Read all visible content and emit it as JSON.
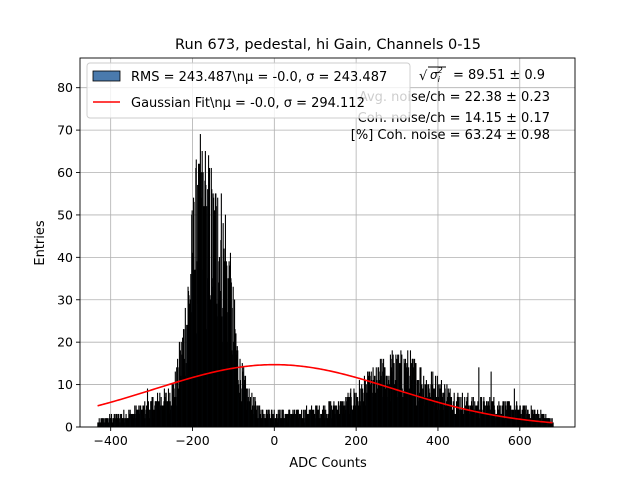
{
  "chart_data": {
    "type": "bar",
    "title": "Run 673, pedestal, hi Gain, Channels 0-15",
    "xlabel": "ADC Counts",
    "ylabel": "Entries",
    "xlim": [
      -475,
      735
    ],
    "ylim": [
      0,
      87
    ],
    "xticks": [
      -400,
      -200,
      0,
      200,
      400,
      600
    ],
    "yticks": [
      0,
      10,
      20,
      30,
      40,
      50,
      60,
      70,
      80
    ],
    "xtick_labels": [
      "−400",
      "−200",
      "0",
      "200",
      "400",
      "600"
    ],
    "ytick_labels": [
      "0",
      "10",
      "20",
      "30",
      "40",
      "50",
      "60",
      "70",
      "80"
    ],
    "grid": true,
    "legend_position": "top-left",
    "histogram": {
      "name": "RMS = 243.487\\nμ = -0.0, σ = 243.487",
      "color": "#4a7aad",
      "bin_range": [
        -432,
        682
      ],
      "envelope": [
        {
          "x": -432,
          "y": 1
        },
        {
          "x": -400,
          "y": 2
        },
        {
          "x": -350,
          "y": 3
        },
        {
          "x": -300,
          "y": 5
        },
        {
          "x": -260,
          "y": 7
        },
        {
          "x": -240,
          "y": 10
        },
        {
          "x": -225,
          "y": 18
        },
        {
          "x": -210,
          "y": 30
        },
        {
          "x": -195,
          "y": 44
        },
        {
          "x": -180,
          "y": 50
        },
        {
          "x": -170,
          "y": 50
        },
        {
          "x": -160,
          "y": 47
        },
        {
          "x": -150,
          "y": 46
        },
        {
          "x": -140,
          "y": 44
        },
        {
          "x": -128,
          "y": 42
        },
        {
          "x": -115,
          "y": 36
        },
        {
          "x": -100,
          "y": 24
        },
        {
          "x": -85,
          "y": 13
        },
        {
          "x": -65,
          "y": 7
        },
        {
          "x": -40,
          "y": 4
        },
        {
          "x": 0,
          "y": 3
        },
        {
          "x": 60,
          "y": 3
        },
        {
          "x": 120,
          "y": 4
        },
        {
          "x": 170,
          "y": 5
        },
        {
          "x": 210,
          "y": 8
        },
        {
          "x": 240,
          "y": 10
        },
        {
          "x": 270,
          "y": 12
        },
        {
          "x": 300,
          "y": 13
        },
        {
          "x": 330,
          "y": 13
        },
        {
          "x": 360,
          "y": 11
        },
        {
          "x": 400,
          "y": 9
        },
        {
          "x": 450,
          "y": 6
        },
        {
          "x": 500,
          "y": 5
        },
        {
          "x": 550,
          "y": 5
        },
        {
          "x": 600,
          "y": 4
        },
        {
          "x": 650,
          "y": 3
        },
        {
          "x": 682,
          "y": 1
        }
      ],
      "peaks": [
        {
          "x": -183,
          "y": 62
        },
        {
          "x": -179,
          "y": 60
        },
        {
          "x": -170,
          "y": 58
        },
        {
          "x": -163,
          "y": 56
        },
        {
          "x": -150,
          "y": 55
        },
        {
          "x": -138,
          "y": 54
        },
        {
          "x": -196,
          "y": 53
        },
        {
          "x": -187,
          "y": 57
        },
        {
          "x": -120,
          "y": 50
        },
        {
          "x": -110,
          "y": 38
        },
        {
          "x": 288,
          "y": 18
        },
        {
          "x": 297,
          "y": 17
        },
        {
          "x": 320,
          "y": 16
        },
        {
          "x": 312,
          "y": 17
        },
        {
          "x": 345,
          "y": 15
        },
        {
          "x": 263,
          "y": 16
        },
        {
          "x": 500,
          "y": 14
        },
        {
          "x": 530,
          "y": 13
        },
        {
          "x": 587,
          "y": 9
        },
        {
          "x": -310,
          "y": 9
        },
        {
          "x": -280,
          "y": 8
        },
        {
          "x": -250,
          "y": 10
        }
      ]
    },
    "fit": {
      "name": "Gaussian Fit\\nμ = -0.0, σ = 294.112",
      "color": "#ff0000",
      "mu": 0,
      "sigma": 294.112,
      "amplitude": 14.7,
      "x_range": [
        -432,
        682
      ]
    },
    "annotations": [
      {
        "id": "rms",
        "text": "= 89.51 ± 0.9"
      },
      {
        "id": "avg",
        "text": "Avg. noise/ch = 22.38 ± 0.23"
      },
      {
        "id": "coh",
        "text": "Coh. noise/ch = 14.15 ± 0.17"
      },
      {
        "id": "pct",
        "text": "[%] Coh. noise = 63.24 ± 0.98"
      }
    ]
  }
}
